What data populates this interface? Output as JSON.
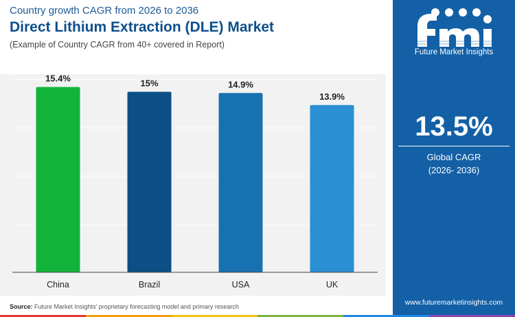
{
  "header": {
    "subtitle": "Country growth CAGR from 2026 to 2036",
    "title": "Direct Lithium Extraction (DLE) Market",
    "note": "(Example of Country CAGR from 40+ covered in Report)"
  },
  "chart_data": {
    "type": "bar",
    "categories": [
      "China",
      "Brazil",
      "USA",
      "UK"
    ],
    "values": [
      15.4,
      15,
      14.9,
      13.9
    ],
    "value_labels": [
      "15.4%",
      "15%",
      "14.9%",
      "13.9%"
    ],
    "bar_colors": [
      "#12b33a",
      "#0b4f86",
      "#1872b2",
      "#2b8fd3"
    ],
    "title": "Direct Lithium Extraction (DLE) Market",
    "xlabel": "",
    "ylabel": "",
    "ylim": [
      0,
      16
    ],
    "grid": true,
    "legend": "none"
  },
  "source": {
    "label": "Source:",
    "text": "Future Market Insights' proprietary forecasting model and primary research"
  },
  "side_panel": {
    "logo_text": "Future Market Insights",
    "global_value": "13.5%",
    "global_label_line1": "Global CAGR",
    "global_label_line2": "(2026- 2036)",
    "website": "www.futuremarketinsights.com"
  },
  "colors": {
    "panel": "#1360a6",
    "title": "#0d4f8b",
    "chart_bg": "#f2f2f2",
    "stripe": [
      "#e53935",
      "#f39c12",
      "#f1c40f",
      "#7cb342",
      "#1e88e5",
      "#8e44ad"
    ]
  }
}
